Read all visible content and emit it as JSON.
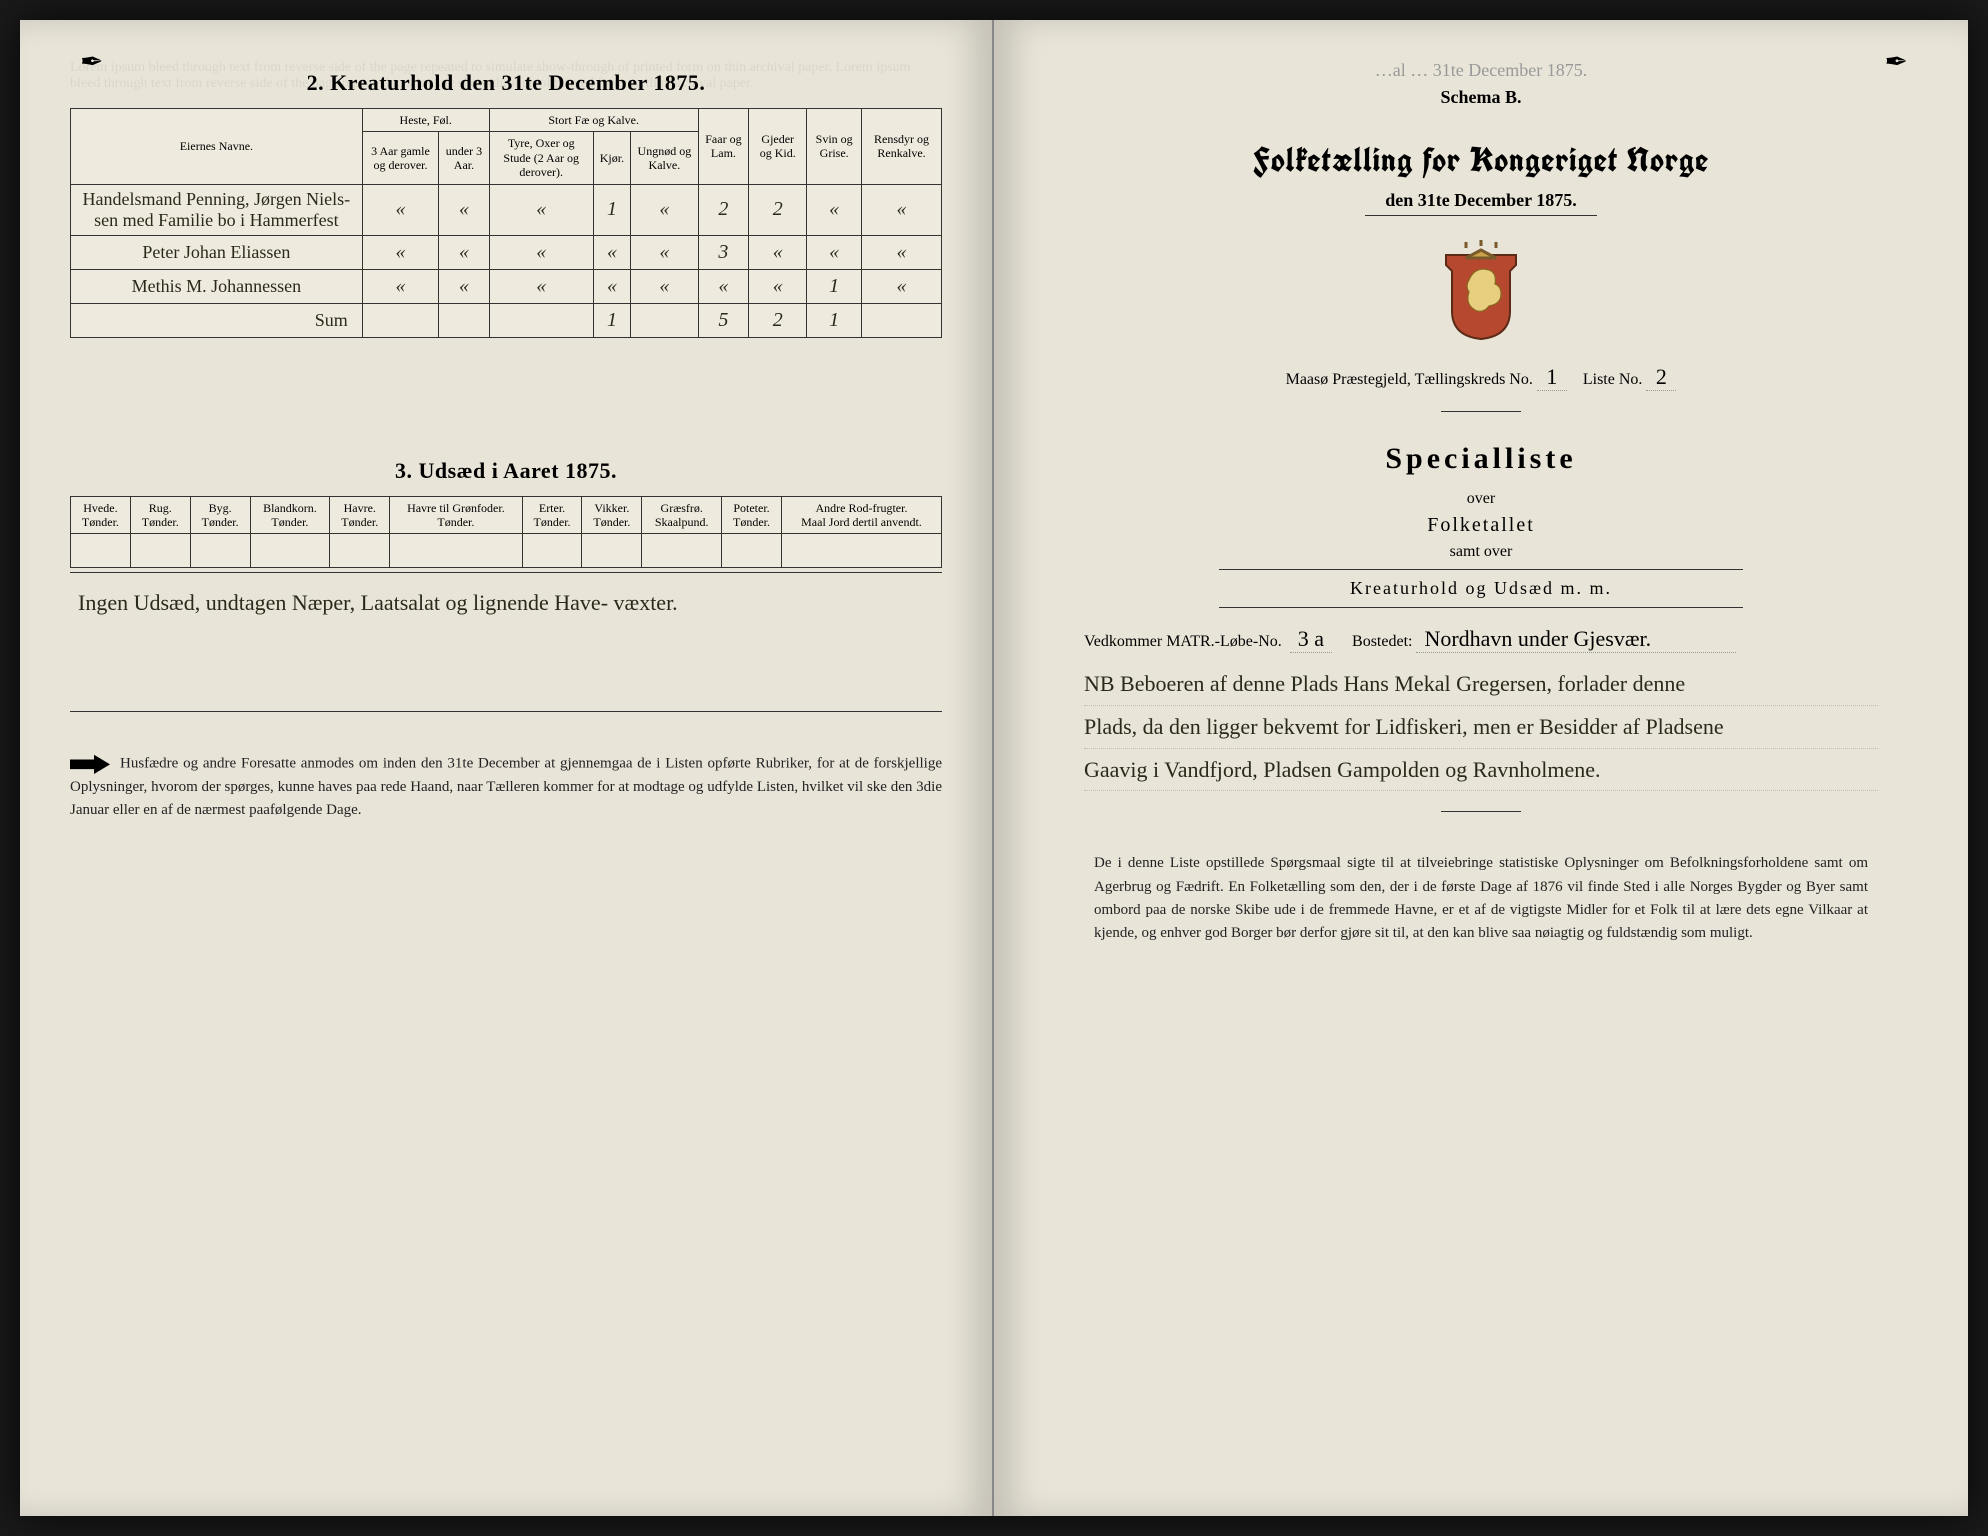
{
  "left": {
    "section2_title": "2.  Kreaturhold den 31te December 1875.",
    "table2": {
      "owner_header": "Eiernes Navne.",
      "group_headers": [
        "Heste, Føl.",
        "Stort Fæ og Kalve.",
        "Faar og Lam.",
        "Gjeder og Kid.",
        "Svin og Grise.",
        "Rensdyr og Renkalve."
      ],
      "sub_headers": [
        "3 Aar gamle og derover.",
        "under 3 Aar.",
        "Tyre, Oxer og Stude (2 Aar og derover).",
        "Kjør.",
        "Ungnød og Kalve."
      ],
      "rows": [
        {
          "owner": "Handelsmand Penning, Jørgen Niels-\nsen med Familie bo i Hammerfest",
          "cells": [
            "«",
            "«",
            "«",
            "1",
            "«",
            "2",
            "2",
            "«",
            "«"
          ]
        },
        {
          "owner": "Peter Johan Eliassen",
          "cells": [
            "«",
            "«",
            "«",
            "«",
            "«",
            "3",
            "«",
            "«",
            "«"
          ]
        },
        {
          "owner": "Methis M. Johannessen",
          "cells": [
            "«",
            "«",
            "«",
            "«",
            "«",
            "«",
            "«",
            "1",
            "«"
          ]
        },
        {
          "owner": "Sum",
          "cells": [
            "",
            "",
            "",
            "1",
            "",
            "5",
            "2",
            "1",
            ""
          ]
        }
      ]
    },
    "section3_title": "3.  Udsæd i Aaret 1875.",
    "table3_headers": [
      "Hvede.\nTønder.",
      "Rug.\nTønder.",
      "Byg.\nTønder.",
      "Blandkorn.\nTønder.",
      "Havre.\nTønder.",
      "Havre til Grønfoder.\nTønder.",
      "Erter.\nTønder.",
      "Vikker.\nTønder.",
      "Græsfrø.\nSkaalpund.",
      "Poteter.\nTønder.",
      "Andre Rod-frugter.\nMaal Jord dertil anvendt."
    ],
    "notes_hand": "Ingen Udsæd, undtagen Næper, Laatsalat og lignende Have-\nvæxter.",
    "footnote": "Husfædre og andre Foresatte anmodes om inden den 31te December at gjennemgaa de i Listen opførte Rubriker, for at de forskjellige Oplysninger, hvorom der spørges, kunne haves paa rede Haand, naar Tælleren kommer for at modtage og udfylde Listen, hvilket vil ske den 3die Januar eller en af de nærmest paafølgende Dage."
  },
  "right": {
    "schema": "Schema B.",
    "main_title": "Folketælling for Kongeriget Norge",
    "sub_date": "den 31te December 1875.",
    "meta_label": "Maasø Præstegjeld,  Tællingskreds No.",
    "kreds_no": "1",
    "liste_label": "Liste No.",
    "liste_no": "2",
    "spec_title": "Specialliste",
    "over": "over",
    "folketallet": "Folketallet",
    "samt": "samt over",
    "kreatur": "Kreaturhold og Udsæd m. m.",
    "vedk_label": "Vedkommer MATR.-Løbe-No.",
    "matr_no": "3 a",
    "bostedet_label": "Bostedet:",
    "bostedet": "Nordhavn under Gjesvær.",
    "nb_lines": [
      "NB Beboeren af denne Plads Hans Mekal Gregersen, forlader denne",
      "Plads, da den ligger bekvemt for Lidfiskeri, men er Besidder af Pladsene",
      "Gaavig i Vandfjord, Pladsen Gampolden og Ravnholmene."
    ],
    "bottom": "De i denne Liste opstillede Spørgsmaal sigte til at tilveiebringe statistiske Oplysninger om Befolkningsforholdene samt om Agerbrug og Fædrift.  En Folketælling som den, der i de første Dage af 1876 vil finde Sted i alle Norges Bygder og Byer samt ombord paa de norske Skibe ude i de fremmede Havne, er et af de vigtigste Midler for et Folk til at lære dets egne Vilkaar at kjende, og enhver god Borger bør derfor gjøre sit til, at den kan blive saa nøiagtig og fuldstændig som muligt."
  },
  "colors": {
    "paper": "#e8e4d8",
    "ink": "#1a1a1a",
    "hand": "#2a2a1a"
  }
}
